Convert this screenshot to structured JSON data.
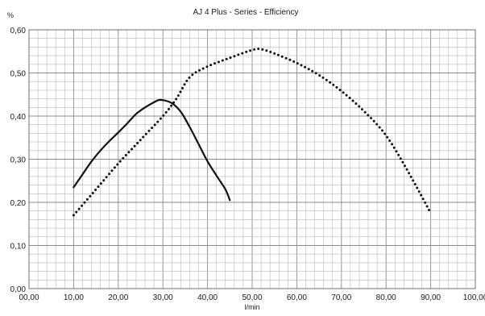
{
  "chart_data": {
    "type": "line",
    "title": "AJ 4 Plus - Series - Efficiency",
    "xlabel": "l/min",
    "ylabel": "%",
    "xlim": [
      0,
      100
    ],
    "ylim": [
      0,
      0.6
    ],
    "x_tick_labels": [
      "00,00",
      "10,00",
      "20,00",
      "30,00",
      "40,00",
      "50,00",
      "60,00",
      "70,00",
      "80,00",
      "90,00",
      "100,00"
    ],
    "y_tick_labels": [
      "0,00",
      "0,10",
      "0,20",
      "0,30",
      "0,40",
      "0,50",
      "0,60"
    ],
    "grid": true,
    "series": [
      {
        "style": "solid",
        "color": "#111111",
        "x": [
          10,
          12,
          14,
          16,
          18,
          20,
          22,
          24,
          26,
          28,
          29,
          30,
          32,
          34,
          36,
          38,
          40,
          42,
          44,
          45
        ],
        "y": [
          0.235,
          0.265,
          0.295,
          0.32,
          0.342,
          0.362,
          0.383,
          0.405,
          0.42,
          0.432,
          0.437,
          0.437,
          0.43,
          0.41,
          0.375,
          0.335,
          0.295,
          0.262,
          0.23,
          0.205
        ]
      },
      {
        "style": "dotted",
        "color": "#111111",
        "x": [
          10,
          15,
          20,
          25,
          30,
          33,
          36,
          40,
          45,
          50,
          52,
          55,
          60,
          65,
          70,
          75,
          80,
          85,
          90
        ],
        "y": [
          0.17,
          0.23,
          0.29,
          0.345,
          0.4,
          0.44,
          0.49,
          0.515,
          0.535,
          0.553,
          0.555,
          0.545,
          0.523,
          0.495,
          0.458,
          0.412,
          0.355,
          0.27,
          0.175
        ]
      }
    ]
  }
}
